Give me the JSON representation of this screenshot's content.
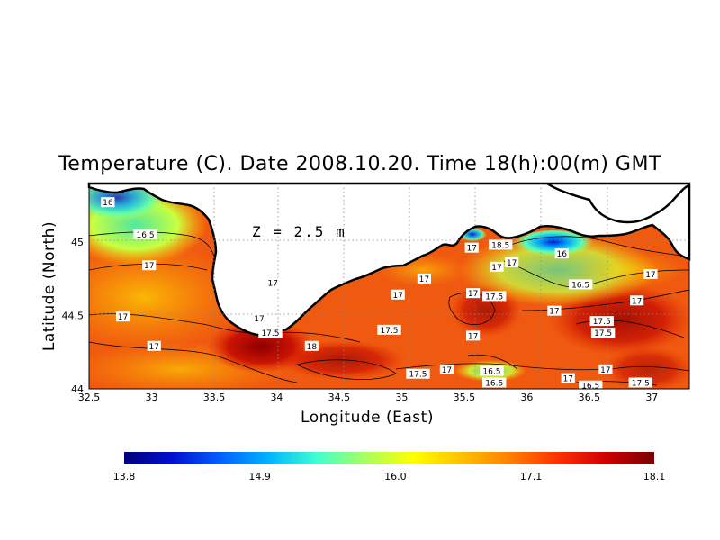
{
  "title": "Temperature (C). Date 2008.10.20. Time 18(h):00(m) GMT",
  "depth_label": "Z = 2.5 m",
  "axes": {
    "xlabel": "Longitude (East)",
    "ylabel": "Latitude (North)",
    "xlim": [
      32.5,
      37.3
    ],
    "ylim": [
      44.0,
      45.4
    ],
    "xticks": [
      "32.5",
      "33",
      "33.5",
      "34",
      "34.5",
      "35",
      "35.5",
      "36",
      "36.5",
      "37"
    ],
    "yticks": [
      "44",
      "44.5",
      "45"
    ],
    "grid": true
  },
  "colorbar": {
    "min": 13.8,
    "max": 18.1,
    "ticks": [
      "13.8",
      "14.9",
      "16.0",
      "17.1",
      "18.1"
    ],
    "colors": [
      "#00007a",
      "#0010d0",
      "#0060ff",
      "#00b4ff",
      "#40ffd0",
      "#a8ff60",
      "#ffff00",
      "#ffc000",
      "#ff8000",
      "#ff3000",
      "#d00000",
      "#780000"
    ]
  },
  "chart_data": {
    "type": "heatmap",
    "variable": "Temperature (C)",
    "contour_labels": [
      {
        "text": "16",
        "lon": 32.65,
        "lat": 45.27
      },
      {
        "text": "16.5",
        "lon": 32.95,
        "lat": 45.05
      },
      {
        "text": "17",
        "lon": 32.98,
        "lat": 44.84
      },
      {
        "text": "17",
        "lon": 33.97,
        "lat": 44.72
      },
      {
        "text": "17",
        "lon": 32.77,
        "lat": 44.49
      },
      {
        "text": "17",
        "lon": 33.86,
        "lat": 44.48
      },
      {
        "text": "17.5",
        "lon": 33.95,
        "lat": 44.38
      },
      {
        "text": "17",
        "lon": 33.02,
        "lat": 44.29
      },
      {
        "text": "18",
        "lon": 34.28,
        "lat": 44.29
      },
      {
        "text": "17.5",
        "lon": 34.9,
        "lat": 44.4
      },
      {
        "text": "17.5",
        "lon": 35.13,
        "lat": 44.1
      },
      {
        "text": "17",
        "lon": 34.97,
        "lat": 44.64
      },
      {
        "text": "17",
        "lon": 35.18,
        "lat": 44.75
      },
      {
        "text": "17",
        "lon": 35.57,
        "lat": 44.65
      },
      {
        "text": "17",
        "lon": 35.56,
        "lat": 44.96
      },
      {
        "text": "18.5",
        "lon": 35.79,
        "lat": 44.98
      },
      {
        "text": "17",
        "lon": 35.76,
        "lat": 44.83
      },
      {
        "text": "17",
        "lon": 35.88,
        "lat": 44.86
      },
      {
        "text": "17.5",
        "lon": 35.74,
        "lat": 44.63
      },
      {
        "text": "16",
        "lon": 36.28,
        "lat": 44.92
      },
      {
        "text": "16.5",
        "lon": 36.43,
        "lat": 44.71
      },
      {
        "text": "17",
        "lon": 36.22,
        "lat": 44.53
      },
      {
        "text": "17",
        "lon": 36.99,
        "lat": 44.78
      },
      {
        "text": "17",
        "lon": 36.88,
        "lat": 44.6
      },
      {
        "text": "17.5",
        "lon": 36.6,
        "lat": 44.46
      },
      {
        "text": "17.5",
        "lon": 36.61,
        "lat": 44.38
      },
      {
        "text": "17",
        "lon": 35.57,
        "lat": 44.36
      },
      {
        "text": "17",
        "lon": 35.36,
        "lat": 44.13
      },
      {
        "text": "16.5",
        "lon": 35.72,
        "lat": 44.12
      },
      {
        "text": "16.5",
        "lon": 35.74,
        "lat": 44.04
      },
      {
        "text": "17",
        "lon": 36.33,
        "lat": 44.07
      },
      {
        "text": "17",
        "lon": 36.63,
        "lat": 44.13
      },
      {
        "text": "16.5",
        "lon": 36.51,
        "lat": 44.02
      },
      {
        "text": "17.5",
        "lon": 36.91,
        "lat": 44.04
      }
    ]
  }
}
